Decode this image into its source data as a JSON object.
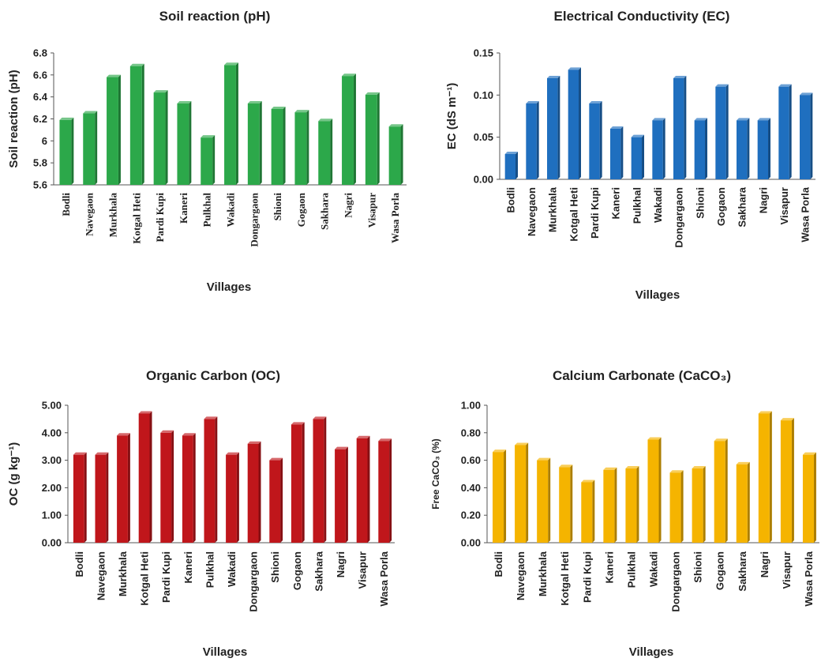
{
  "chart_data": [
    {
      "type": "bar",
      "title": "Soil reaction (pH)",
      "xlabel": "Villages",
      "ylabel": "Soil reaction (pH)",
      "ylim": [
        5.6,
        6.8
      ],
      "yticks": [
        "5.6",
        "5.8",
        "6",
        "6.2",
        "6.4",
        "6.6",
        "6.8"
      ],
      "ytick_values": [
        5.6,
        5.8,
        6.0,
        6.2,
        6.4,
        6.6,
        6.8
      ],
      "categories": [
        "Bodli",
        "Navegaon",
        "Murkhala",
        "Kotgal Heti",
        "Pardi Kupi",
        "Kaneri",
        "Pulkhal",
        "Wakadi",
        "Dongargaon",
        "Shioni",
        "Gogaon",
        "Sakhara",
        "Nagri",
        "Visapur",
        "Wasa Porla"
      ],
      "values": [
        6.19,
        6.25,
        6.58,
        6.68,
        6.44,
        6.34,
        6.03,
        6.69,
        6.34,
        6.29,
        6.26,
        6.18,
        6.59,
        6.42,
        6.13
      ],
      "color": "#2ca84a",
      "grid": false
    },
    {
      "type": "bar",
      "title": "Electrical Conductivity (EC)",
      "xlabel": "Villages",
      "ylabel": "EC (dS m⁻¹)",
      "ylim": [
        0,
        0.15
      ],
      "yticks": [
        "0.00",
        "0.05",
        "0.10",
        "0.15"
      ],
      "ytick_values": [
        0,
        0.05,
        0.1,
        0.15
      ],
      "categories": [
        "Bodli",
        "Navegaon",
        "Murkhala",
        "Kotgal Heti",
        "Pardi Kupi",
        "Kaneri",
        "Pulkhal",
        "Wakadi",
        "Dongargaon",
        "Shioni",
        "Gogaon",
        "Sakhara",
        "Nagri",
        "Visapur",
        "Wasa Porla"
      ],
      "values": [
        0.03,
        0.09,
        0.12,
        0.13,
        0.09,
        0.06,
        0.05,
        0.07,
        0.12,
        0.07,
        0.11,
        0.07,
        0.07,
        0.11,
        0.1
      ],
      "color": "#1f6fbf",
      "grid": false
    },
    {
      "type": "bar",
      "title": "Organic Carbon (OC)",
      "xlabel": "Villages",
      "ylabel": "OC (g kg⁻¹)",
      "ylim": [
        0,
        5
      ],
      "yticks": [
        "0.00",
        "1.00",
        "2.00",
        "3.00",
        "4.00",
        "5.00"
      ],
      "ytick_values": [
        0,
        1,
        2,
        3,
        4,
        5
      ],
      "categories": [
        "Bodli",
        "Navegaon",
        "Murkhala",
        "Kotgal Heti",
        "Pardi Kupi",
        "Kaneri",
        "Pulkhal",
        "Wakadi",
        "Dongargaon",
        "Shioni",
        "Gogaon",
        "Sakhara",
        "Nagri",
        "Visapur",
        "Wasa Porla"
      ],
      "values": [
        3.2,
        3.2,
        3.9,
        4.7,
        4.0,
        3.9,
        4.5,
        3.2,
        3.6,
        3.0,
        4.3,
        4.5,
        3.4,
        3.8,
        3.7
      ],
      "color": "#c0161b",
      "grid": false
    },
    {
      "type": "bar",
      "title": "Calcium Carbonate (CaCO₃)",
      "xlabel": "Villages",
      "ylabel": "Free CaCO₃ (%)",
      "ylim": [
        0,
        1
      ],
      "yticks": [
        "0.00",
        "0.20",
        "0.40",
        "0.60",
        "0.80",
        "1.00"
      ],
      "ytick_values": [
        0,
        0.2,
        0.4,
        0.6,
        0.8,
        1.0
      ],
      "categories": [
        "Bodli",
        "Navegaon",
        "Murkhala",
        "Kotgal Heti",
        "Pardi Kupi",
        "Kaneri",
        "Pulkhal",
        "Wakadi",
        "Dongargaon",
        "Shioni",
        "Gogaon",
        "Sakhara",
        "Nagri",
        "Visapur",
        "Wasa Porla"
      ],
      "values": [
        0.66,
        0.71,
        0.6,
        0.55,
        0.44,
        0.53,
        0.54,
        0.75,
        0.51,
        0.54,
        0.74,
        0.57,
        0.94,
        0.89,
        0.64
      ],
      "color": "#f5b400",
      "grid": false
    }
  ]
}
